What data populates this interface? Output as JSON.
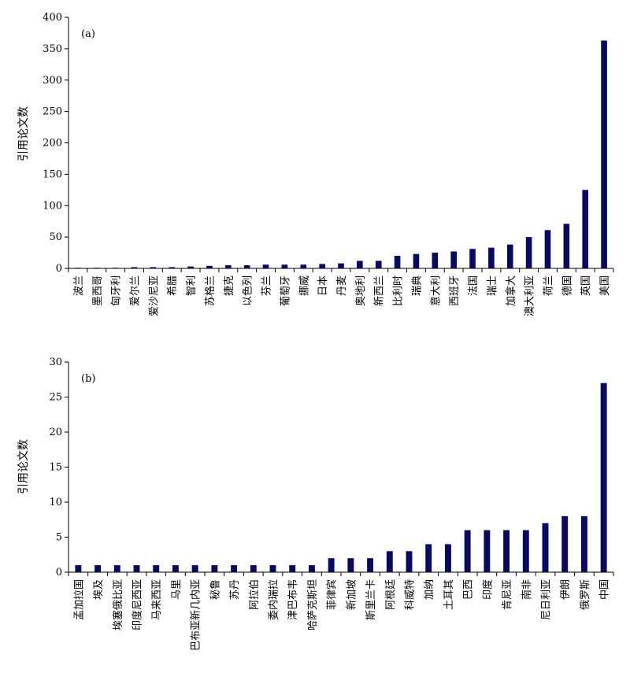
{
  "chart_data": [
    {
      "type": "bar",
      "panel_label": "(a)",
      "ylabel": "引用论文数",
      "ylim": [
        0,
        400
      ],
      "yticks": [
        0,
        50,
        100,
        150,
        200,
        250,
        300,
        350,
        400
      ],
      "grid": false,
      "bar_color": "#0a0a5c",
      "categories": [
        "波兰",
        "墨西哥",
        "匈牙利",
        "爱尔兰",
        "爱沙尼亚",
        "希腊",
        "智利",
        "苏格兰",
        "捷克",
        "以色列",
        "芬兰",
        "葡萄牙",
        "挪威",
        "日本",
        "丹麦",
        "奥地利",
        "新西兰",
        "比利时",
        "瑞典",
        "意大利",
        "西班牙",
        "法国",
        "瑞士",
        "加拿大",
        "澳大利亚",
        "荷兰",
        "德国",
        "英国",
        "美国"
      ],
      "values": [
        1,
        1,
        1,
        2,
        2,
        2,
        3,
        4,
        5,
        5,
        6,
        6,
        6,
        7,
        8,
        12,
        12,
        20,
        23,
        25,
        27,
        31,
        33,
        38,
        50,
        61,
        71,
        125,
        363
      ]
    },
    {
      "type": "bar",
      "panel_label": "(b)",
      "ylabel": "引用论文数",
      "ylim": [
        0,
        30
      ],
      "yticks": [
        0,
        5,
        10,
        15,
        20,
        25,
        30
      ],
      "grid": false,
      "bar_color": "#0a0a5c",
      "categories": [
        "孟加拉国",
        "埃及",
        "埃塞俄比亚",
        "印度尼西亚",
        "马来西亚",
        "马里",
        "巴布亚新几内亚",
        "秘鲁",
        "苏丹",
        "阿拉伯",
        "委内瑞拉",
        "津巴布韦",
        "哈萨克斯坦",
        "菲律宾",
        "新加坡",
        "斯里兰卡",
        "阿根廷",
        "科威特",
        "加纳",
        "土耳其",
        "巴西",
        "印度",
        "肯尼亚",
        "南非",
        "尼日利亚",
        "伊朗",
        "俄罗斯",
        "中国"
      ],
      "values": [
        1,
        1,
        1,
        1,
        1,
        1,
        1,
        1,
        1,
        1,
        1,
        1,
        1,
        2,
        2,
        2,
        3,
        3,
        4,
        4,
        6,
        6,
        6,
        6,
        7,
        8,
        8,
        27
      ]
    }
  ]
}
